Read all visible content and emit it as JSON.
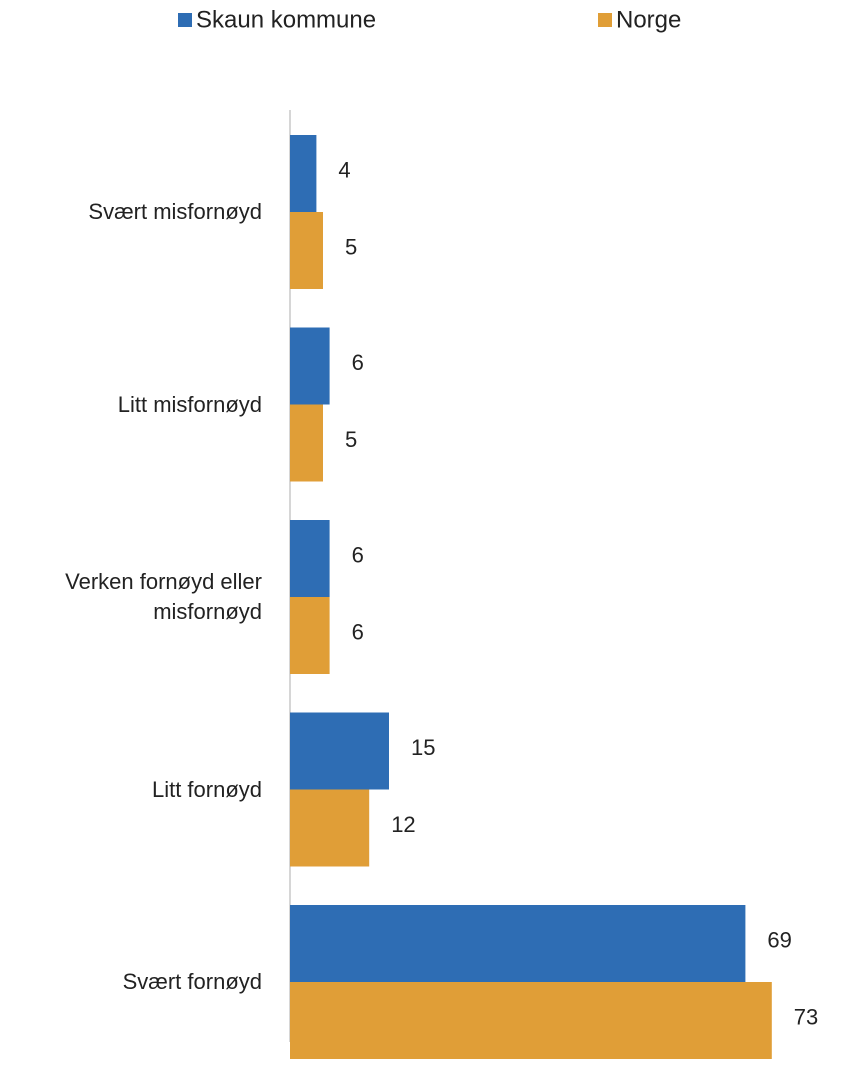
{
  "chart_data": {
    "type": "bar",
    "orientation": "horizontal",
    "categories": [
      "Svært misfornøyd",
      "Litt misfornøyd",
      "Verken fornøyd eller misfornøyd",
      "Litt fornøyd",
      "Svært fornøyd"
    ],
    "series": [
      {
        "name": "Skaun kommune",
        "color": "#2e6db4",
        "values": [
          4,
          6,
          6,
          15,
          69
        ]
      },
      {
        "name": "Norge",
        "color": "#e09e37",
        "values": [
          5,
          5,
          6,
          12,
          73
        ]
      }
    ],
    "legend": "top"
  }
}
